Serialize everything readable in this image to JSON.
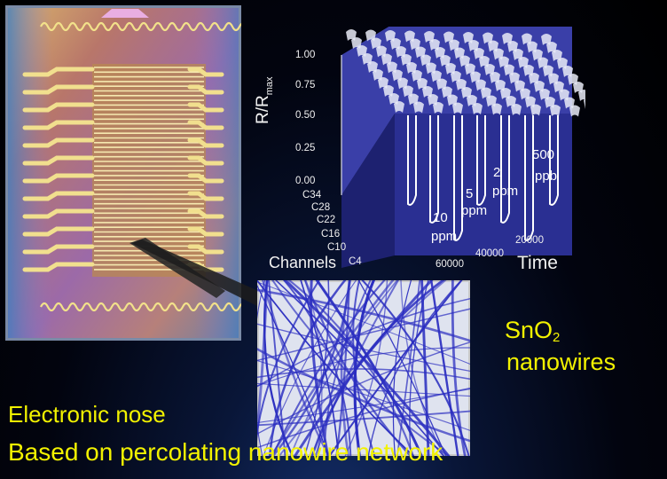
{
  "chart_data": {
    "type": "area",
    "ylabel": "R/R",
    "ylabel_sub": "max",
    "xlabel": "Time",
    "zlabel": "Channels",
    "y_ticks": [
      "1.00",
      "0.75",
      "0.50",
      "0.25",
      "0.00"
    ],
    "ylim": [
      0,
      1
    ],
    "channel_ticks": [
      "C34",
      "C28",
      "C22",
      "C16",
      "C10",
      "C4"
    ],
    "time_ticks": [
      "20000",
      "40000",
      "60000"
    ],
    "exposures": [
      {
        "value": "10",
        "unit": "ppm"
      },
      {
        "value": "5",
        "unit": "ppm"
      },
      {
        "value": "2",
        "unit": "ppm"
      },
      {
        "value": "500",
        "unit": "ppb"
      }
    ]
  },
  "labels": {
    "material": "SnO",
    "material_sub": "2",
    "material_line2": "nanowires",
    "title_line1": "Electronic nose",
    "title_line2": "Based on percolating nanowire network"
  },
  "colors": {
    "caption_text": "#f2f200",
    "plot_surface": "#2a2f92",
    "plot_edge": "#ffffff",
    "wires": "#2b2ec0"
  }
}
